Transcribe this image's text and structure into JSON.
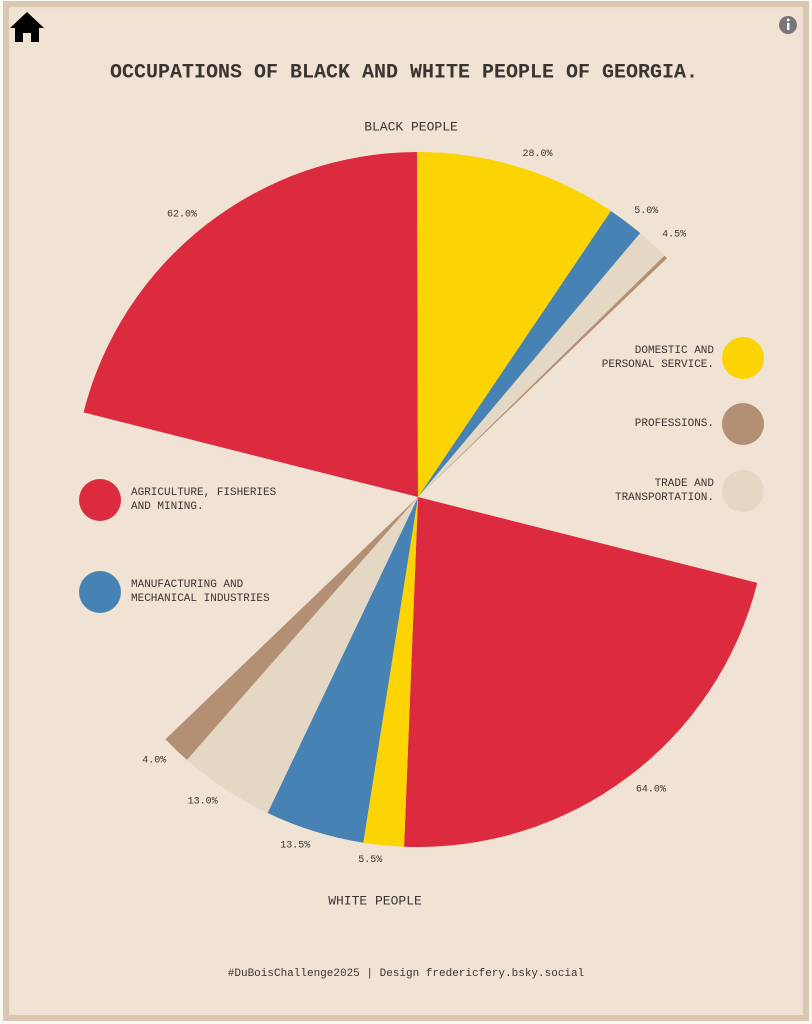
{
  "chart_data": {
    "type": "pie",
    "title": "OCCUPATIONS OF BLACK AND WHITE PEOPLE OF GEORGIA.",
    "caption": "#DuBoisChallenge2025 | Design fredericfery.bsky.social",
    "categories": [
      "AGRICULTURE, FISHERIES AND MINING.",
      "DOMESTIC AND PERSONAL SERVICE.",
      "MANUFACTURING AND MECHANICAL INDUSTRIES",
      "TRADE AND TRANSPORTATION.",
      "PROFESSIONS."
    ],
    "colors": [
      "#dc2a3e",
      "#fcd404",
      "#4682b4",
      "#e4d8c4",
      "#b38f74"
    ],
    "series": [
      {
        "name": "BLACK PEOPLE",
        "values": [
          62,
          28,
          5,
          4.5,
          0.5
        ],
        "value_labels": [
          "62.0%",
          "28.0%",
          "5.0%",
          "4.5%",
          null
        ]
      },
      {
        "name": "WHITE PEOPLE",
        "values": [
          64,
          5.5,
          13.5,
          13,
          4
        ],
        "value_labels": [
          "64.0%",
          "5.5%",
          "13.5%",
          "13.0%",
          "4.0%"
        ]
      }
    ]
  }
}
